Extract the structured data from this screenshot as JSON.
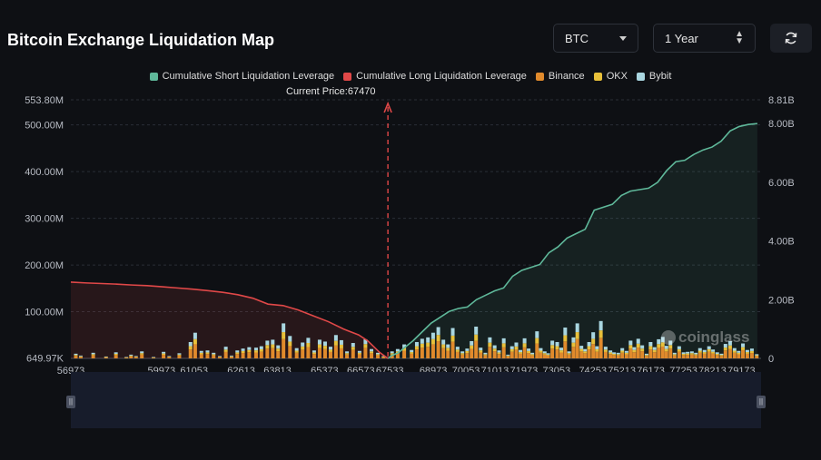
{
  "header": {
    "title": "Bitcoin Exchange Liquidation Map",
    "coin": "BTC",
    "period": "1 Year"
  },
  "watermark": "coinglass",
  "current_price_label": "Current Price:67470",
  "colors": {
    "short": "#5fb89a",
    "long": "#e04848",
    "binance": "#e08a2c",
    "okx": "#e8c03a",
    "bybit": "#a9d6e0",
    "background": "#0e1014"
  },
  "chart_data": {
    "type": "bar",
    "legend": [
      {
        "key": "short",
        "label": "Cumulative Short Liquidation Leverage"
      },
      {
        "key": "long",
        "label": "Cumulative Long Liquidation Leverage"
      },
      {
        "key": "binance",
        "label": "Binance"
      },
      {
        "key": "okx",
        "label": "OKX"
      },
      {
        "key": "bybit",
        "label": "Bybit"
      }
    ],
    "x_ticks": [
      "56973",
      "59973",
      "61053",
      "62613",
      "63813",
      "65373",
      "66573",
      "67533",
      "68973",
      "70053",
      "71013",
      "71973",
      "73053",
      "74253",
      "75213",
      "76173",
      "77253",
      "78213",
      "79173"
    ],
    "y_left_ticks": [
      "553.80M",
      "500.00M",
      "400.00M",
      "300.00M",
      "200.00M",
      "100.00M",
      "649.97K"
    ],
    "y_right_ticks": [
      "8.81B",
      "8.00B",
      "6.00B",
      "4.00B",
      "2.00B",
      "0"
    ],
    "y_left_range": [
      0,
      553.8
    ],
    "y_right_range": [
      0,
      8.81
    ],
    "x_range": [
      56973,
      79823
    ],
    "current_price": 67470,
    "bars": [
      [
        57138,
        10
      ],
      [
        57302,
        6
      ],
      [
        57714,
        12
      ],
      [
        58139,
        4
      ],
      [
        58466,
        13
      ],
      [
        58812,
        3
      ],
      [
        58966,
        8
      ],
      [
        59131,
        5
      ],
      [
        59324,
        15
      ],
      [
        59710,
        3
      ],
      [
        60043,
        14
      ],
      [
        60229,
        5
      ],
      [
        60564,
        11
      ],
      [
        60934,
        35
      ],
      [
        61089,
        55
      ],
      [
        61295,
        16
      ],
      [
        61497,
        17
      ],
      [
        61700,
        12
      ],
      [
        61904,
        5
      ],
      [
        62104,
        25
      ],
      [
        62293,
        6
      ],
      [
        62483,
        17
      ],
      [
        62673,
        21
      ],
      [
        62876,
        24
      ],
      [
        63105,
        23
      ],
      [
        63281,
        26
      ],
      [
        63478,
        38
      ],
      [
        63657,
        40
      ],
      [
        63835,
        28
      ],
      [
        64013,
        75
      ],
      [
        64227,
        48
      ],
      [
        64450,
        22
      ],
      [
        64646,
        34
      ],
      [
        64832,
        44
      ],
      [
        65028,
        17
      ],
      [
        65209,
        40
      ],
      [
        65390,
        36
      ],
      [
        65571,
        25
      ],
      [
        65749,
        50
      ],
      [
        65930,
        39
      ],
      [
        66115,
        15
      ],
      [
        66317,
        33
      ],
      [
        66531,
        16
      ],
      [
        66726,
        41
      ],
      [
        66926,
        20
      ],
      [
        67137,
        12
      ],
      [
        67326,
        5
      ],
      [
        67607,
        15
      ],
      [
        67794,
        20
      ],
      [
        68010,
        30
      ],
      [
        68254,
        18
      ],
      [
        68427,
        35
      ],
      [
        68604,
        42
      ],
      [
        68795,
        45
      ],
      [
        68967,
        55
      ],
      [
        69138,
        67
      ],
      [
        69305,
        40
      ],
      [
        69458,
        30
      ],
      [
        69617,
        65
      ],
      [
        69776,
        25
      ],
      [
        69936,
        15
      ],
      [
        70093,
        21
      ],
      [
        70239,
        37
      ],
      [
        70388,
        68
      ],
      [
        70541,
        23
      ],
      [
        70695,
        12
      ],
      [
        70845,
        45
      ],
      [
        71004,
        28
      ],
      [
        71148,
        17
      ],
      [
        71305,
        43
      ],
      [
        71445,
        8
      ],
      [
        71578,
        26
      ],
      [
        71720,
        34
      ],
      [
        71857,
        18
      ],
      [
        71994,
        43
      ],
      [
        72128,
        21
      ],
      [
        72250,
        12
      ],
      [
        72406,
        58
      ],
      [
        72530,
        22
      ],
      [
        72661,
        15
      ],
      [
        72774,
        11
      ],
      [
        72912,
        38
      ],
      [
        73074,
        35
      ],
      [
        73209,
        23
      ],
      [
        73339,
        66
      ],
      [
        73467,
        15
      ],
      [
        73612,
        45
      ],
      [
        73740,
        75
      ],
      [
        73876,
        27
      ],
      [
        73997,
        20
      ],
      [
        74129,
        35
      ],
      [
        74266,
        56
      ],
      [
        74390,
        26
      ],
      [
        74520,
        80
      ],
      [
        74678,
        25
      ],
      [
        74836,
        17
      ],
      [
        74956,
        13
      ],
      [
        75097,
        12
      ],
      [
        75229,
        22
      ],
      [
        75370,
        16
      ],
      [
        75504,
        38
      ],
      [
        75626,
        24
      ],
      [
        75757,
        42
      ],
      [
        75889,
        28
      ],
      [
        76033,
        10
      ],
      [
        76166,
        35
      ],
      [
        76298,
        24
      ],
      [
        76433,
        41
      ],
      [
        76568,
        46
      ],
      [
        76689,
        27
      ],
      [
        76824,
        38
      ],
      [
        76962,
        12
      ],
      [
        77113,
        26
      ],
      [
        77258,
        13
      ],
      [
        77391,
        14
      ],
      [
        77534,
        15
      ],
      [
        77665,
        12
      ],
      [
        77802,
        22
      ],
      [
        77952,
        18
      ],
      [
        78101,
        26
      ],
      [
        78232,
        19
      ],
      [
        78372,
        13
      ],
      [
        78513,
        10
      ],
      [
        78645,
        31
      ],
      [
        78798,
        37
      ],
      [
        78945,
        22
      ],
      [
        79080,
        16
      ],
      [
        79223,
        32
      ],
      [
        79369,
        18
      ],
      [
        79521,
        21
      ],
      [
        79681,
        9
      ]
    ],
    "short_curve": [
      [
        67470,
        0
      ],
      [
        67600,
        0.1
      ],
      [
        67800,
        0.18
      ],
      [
        68000,
        0.35
      ],
      [
        68300,
        0.6
      ],
      [
        68600,
        0.9
      ],
      [
        68900,
        1.2
      ],
      [
        69200,
        1.4
      ],
      [
        69500,
        1.6
      ],
      [
        69800,
        1.7
      ],
      [
        70100,
        1.75
      ],
      [
        70400,
        2.0
      ],
      [
        70700,
        2.15
      ],
      [
        71000,
        2.3
      ],
      [
        71300,
        2.4
      ],
      [
        71600,
        2.8
      ],
      [
        71900,
        3.0
      ],
      [
        72200,
        3.1
      ],
      [
        72500,
        3.2
      ],
      [
        72800,
        3.6
      ],
      [
        73100,
        3.8
      ],
      [
        73400,
        4.1
      ],
      [
        73700,
        4.25
      ],
      [
        74000,
        4.4
      ],
      [
        74300,
        5.05
      ],
      [
        74600,
        5.15
      ],
      [
        74900,
        5.25
      ],
      [
        75200,
        5.55
      ],
      [
        75500,
        5.7
      ],
      [
        75800,
        5.75
      ],
      [
        76100,
        5.8
      ],
      [
        76400,
        6.0
      ],
      [
        76700,
        6.4
      ],
      [
        77000,
        6.7
      ],
      [
        77300,
        6.75
      ],
      [
        77600,
        6.95
      ],
      [
        77900,
        7.1
      ],
      [
        78200,
        7.2
      ],
      [
        78500,
        7.4
      ],
      [
        78800,
        7.75
      ],
      [
        79100,
        7.9
      ],
      [
        79400,
        7.97
      ],
      [
        79700,
        8.0
      ]
    ],
    "long_curve": [
      [
        56973,
        2.6
      ],
      [
        57500,
        2.57
      ],
      [
        58000,
        2.55
      ],
      [
        58500,
        2.53
      ],
      [
        59000,
        2.5
      ],
      [
        59500,
        2.48
      ],
      [
        60000,
        2.44
      ],
      [
        60500,
        2.4
      ],
      [
        61000,
        2.36
      ],
      [
        61500,
        2.31
      ],
      [
        62000,
        2.25
      ],
      [
        62500,
        2.17
      ],
      [
        63000,
        2.05
      ],
      [
        63500,
        1.85
      ],
      [
        64000,
        1.8
      ],
      [
        64500,
        1.65
      ],
      [
        65000,
        1.45
      ],
      [
        65500,
        1.25
      ],
      [
        66000,
        1.0
      ],
      [
        66500,
        0.8
      ],
      [
        66800,
        0.6
      ],
      [
        67000,
        0.4
      ],
      [
        67200,
        0.2
      ],
      [
        67470,
        0
      ]
    ]
  }
}
